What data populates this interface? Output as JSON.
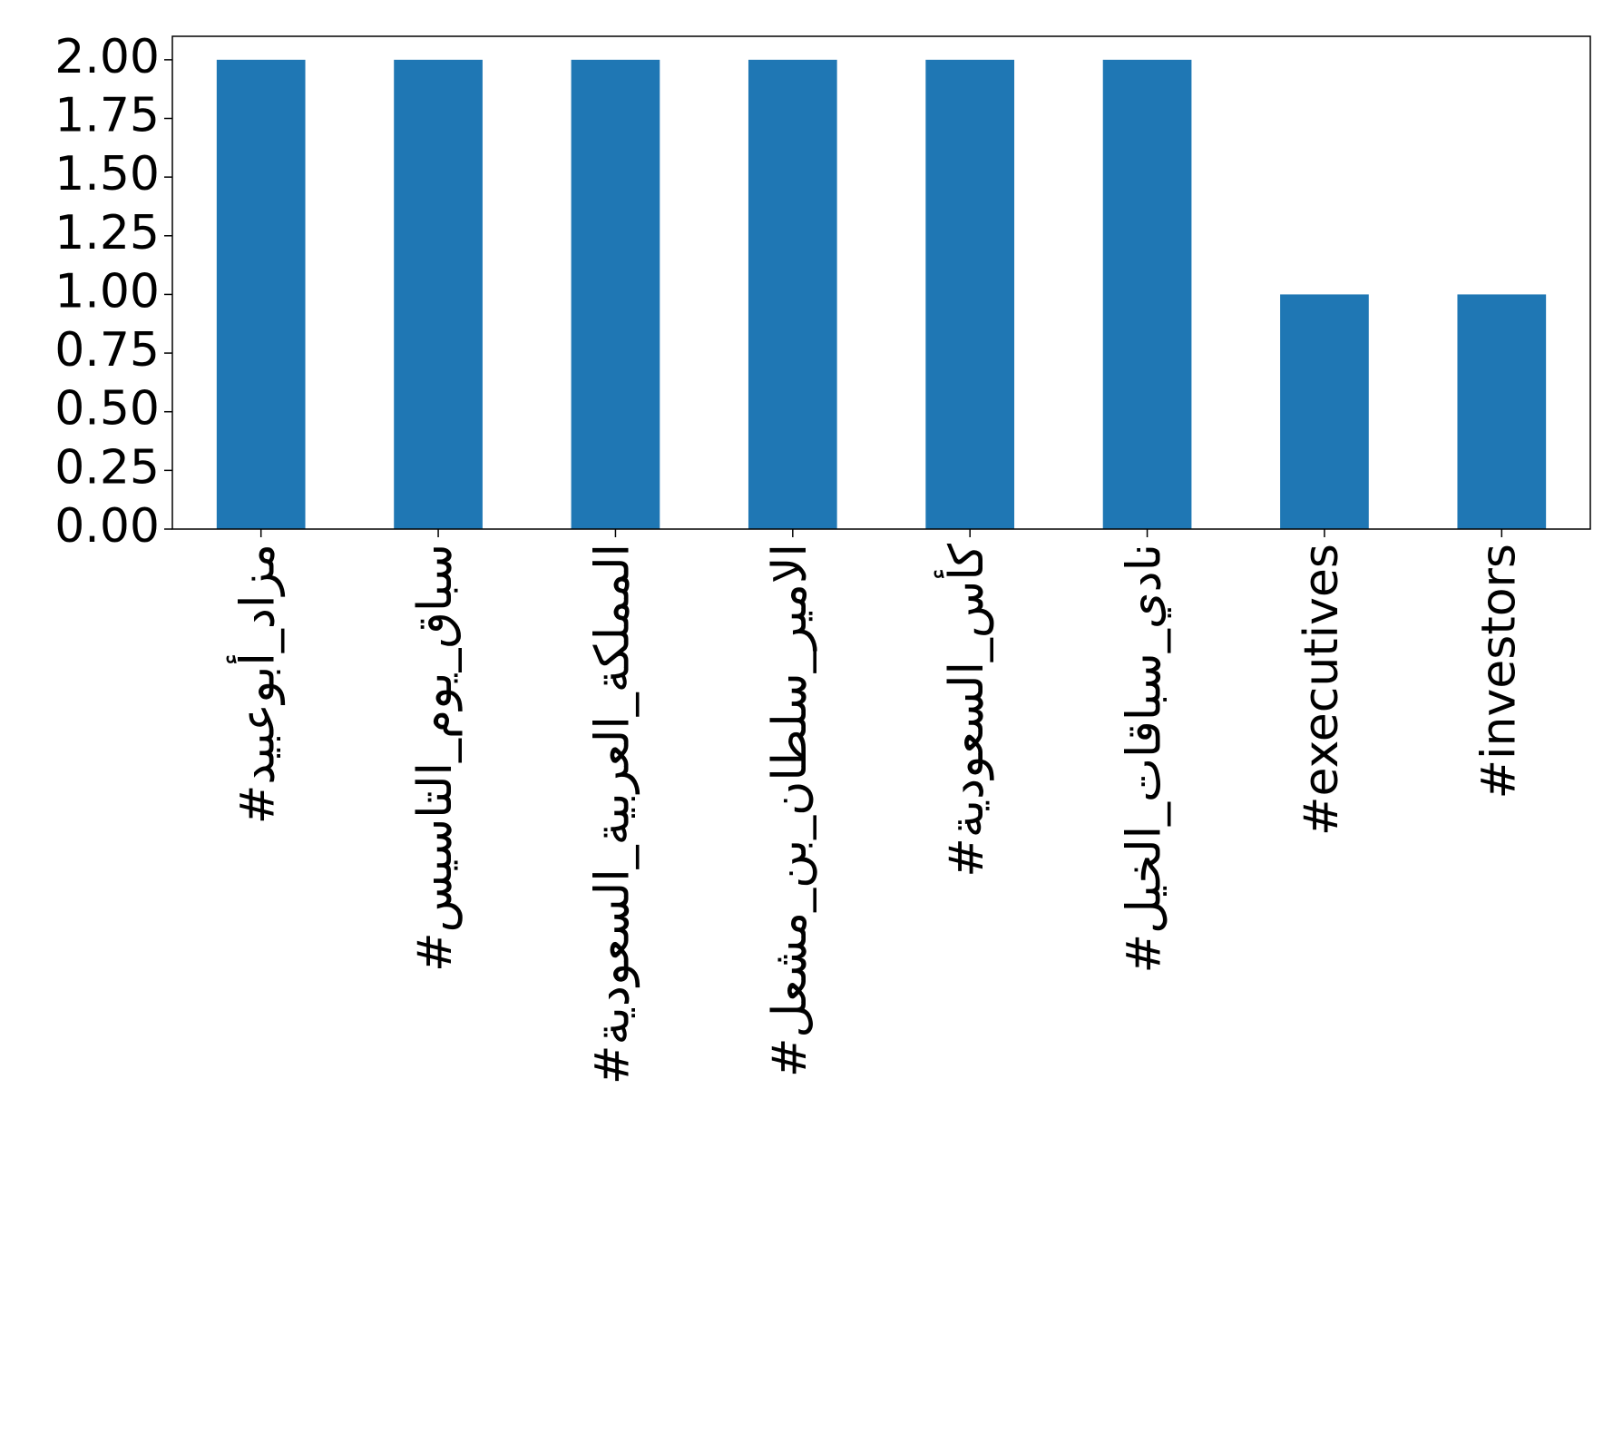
{
  "chart_data": {
    "type": "bar",
    "categories": [
      "#مزاد_أبوعبيد",
      "#سباق_يوم_التاسيس",
      "#المملكة_العربية_السعودية",
      "#الامير_سلطان_بن_مشعل",
      "#كأس_السعودية",
      "#نادي_سباقات_الخيل",
      "#executives",
      "#investors"
    ],
    "values": [
      2,
      2,
      2,
      2,
      2,
      2,
      1,
      1
    ],
    "color": "#1f77b4",
    "ylim": [
      0,
      2.1
    ],
    "yticks": [
      {
        "value": 0,
        "label": "0.00"
      },
      {
        "value": 0.25,
        "label": "0.25"
      },
      {
        "value": 0.5,
        "label": "0.50"
      },
      {
        "value": 0.75,
        "label": "0.75"
      },
      {
        "value": 1,
        "label": "1.00"
      },
      {
        "value": 1.25,
        "label": "1.25"
      },
      {
        "value": 1.5,
        "label": "1.50"
      },
      {
        "value": 1.75,
        "label": "1.75"
      },
      {
        "value": 2,
        "label": "2.00"
      }
    ],
    "grid": false
  }
}
